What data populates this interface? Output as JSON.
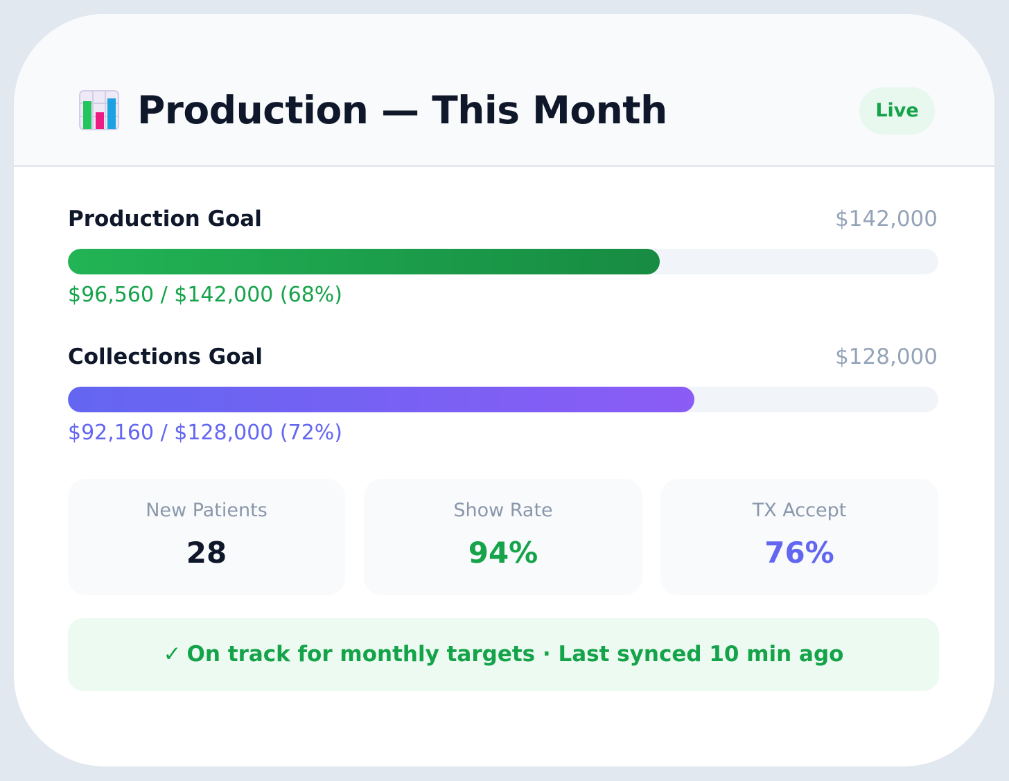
{
  "header": {
    "icon": "bar-chart-icon",
    "title": "Production — This Month",
    "badge": "Live"
  },
  "goals": [
    {
      "label": "Production Goal",
      "target": "$142,000",
      "progress_text": "$96,560 / $142,000 (68%)",
      "fraction": 0.68,
      "color": "#16a34a"
    },
    {
      "label": "Collections Goal",
      "target": "$128,000",
      "progress_text": "$92,160 / $128,000 (72%)",
      "fraction": 0.72,
      "color": "#6366f1"
    }
  ],
  "stats": [
    {
      "label": "New Patients",
      "value": "28",
      "color": "#0f172a"
    },
    {
      "label": "Show Rate",
      "value": "94%",
      "color": "#16a34a"
    },
    {
      "label": "TX Accept",
      "value": "76%",
      "color": "#6366f1"
    }
  ],
  "status": {
    "icon": "checkmark-icon",
    "check": "✓",
    "text": "On track for monthly targets · Last synced 10 min ago"
  }
}
